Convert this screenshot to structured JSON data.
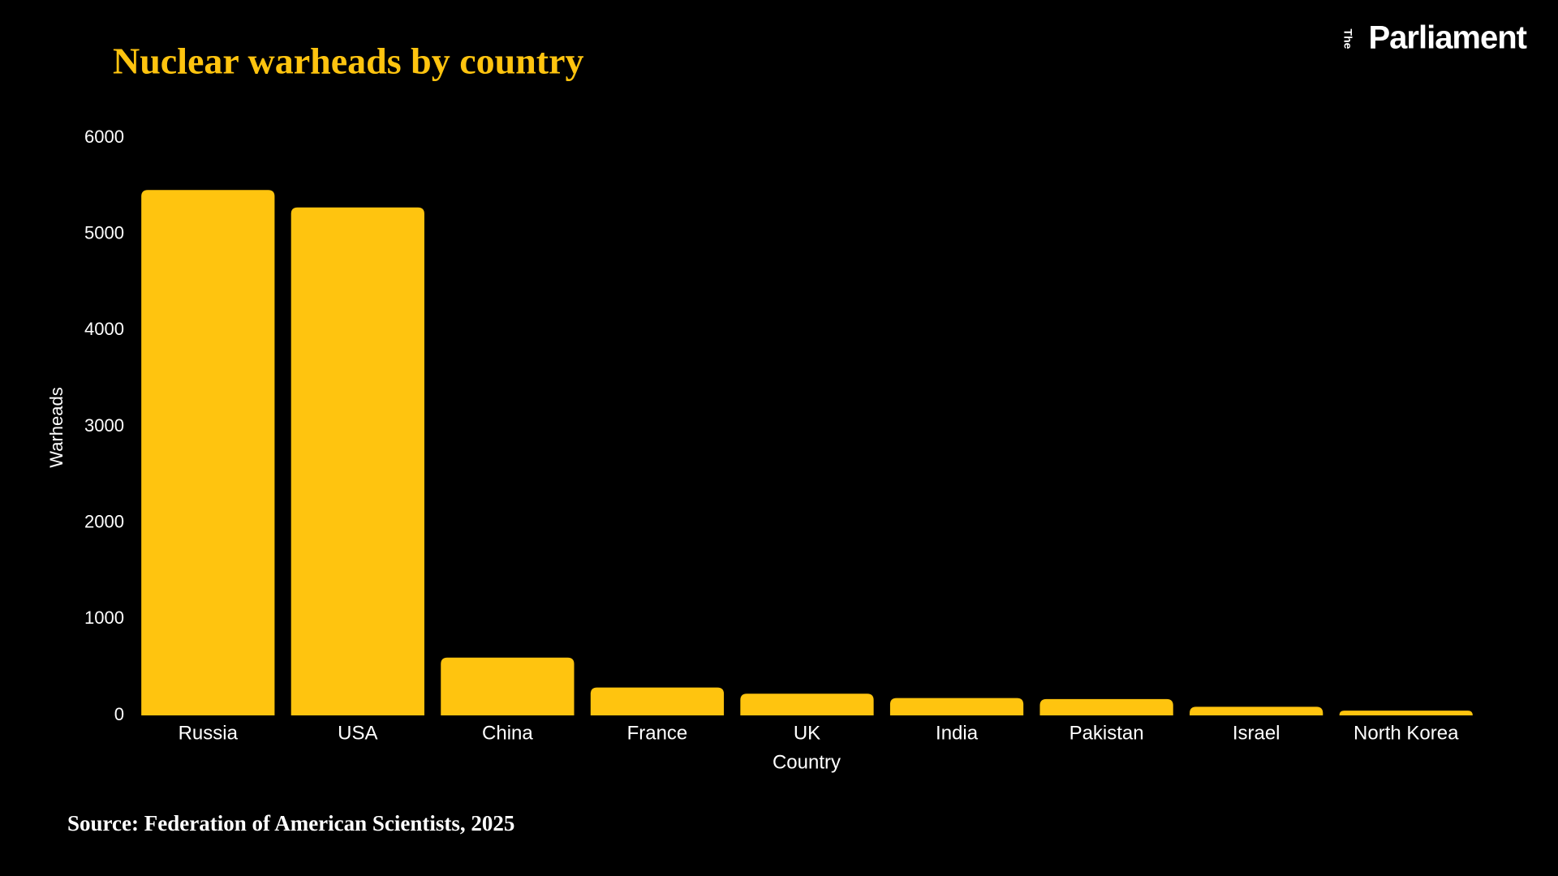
{
  "brand": {
    "small": "The",
    "name": "Parliament"
  },
  "chart_data": {
    "type": "bar",
    "title": "Nuclear warheads by country",
    "x_label": "Country",
    "y_label": "Warheads",
    "categories": [
      "Russia",
      "USA",
      "China",
      "France",
      "UK",
      "India",
      "Pakistan",
      "Israel",
      "North Korea"
    ],
    "values": [
      5459,
      5277,
      600,
      290,
      225,
      180,
      170,
      90,
      50
    ],
    "color": "#ffc40f",
    "ylim": [
      0,
      6000
    ],
    "yticks": [
      0,
      1000,
      2000,
      3000,
      4000,
      5000,
      6000
    ],
    "grid": false,
    "source": "Source: Federation of American Scientists, 2025"
  }
}
